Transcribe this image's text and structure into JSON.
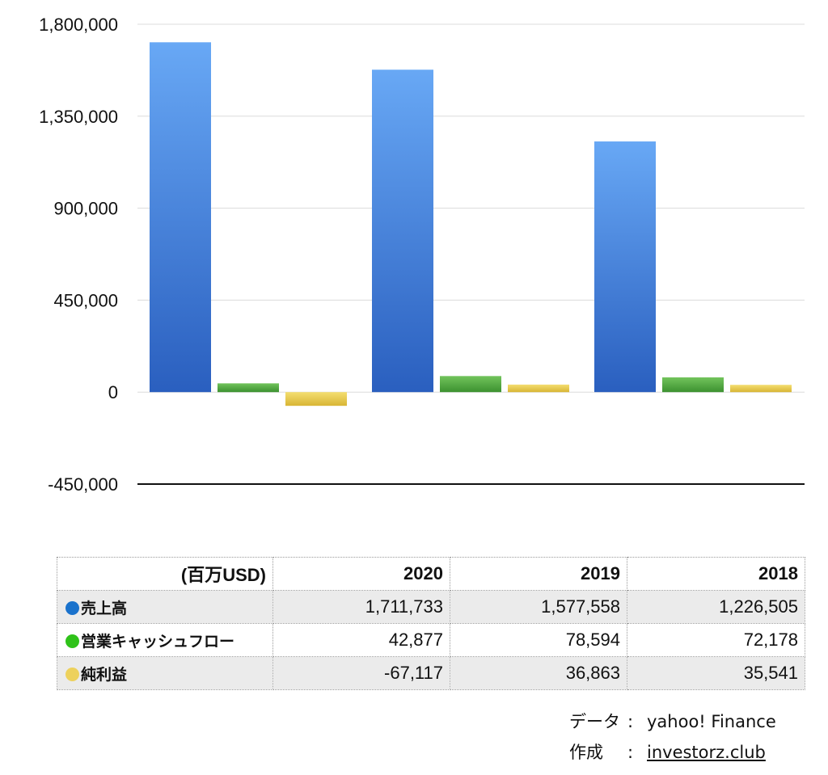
{
  "chart_data": {
    "type": "bar",
    "categories": [
      "2020",
      "2019",
      "2018"
    ],
    "series": [
      {
        "name": "売上高",
        "values": [
          1711733,
          1577558,
          1226505
        ],
        "color": "#3d7fe0",
        "color_top": "#68a8f5",
        "color_bottom": "#2a5fbf"
      },
      {
        "name": "営業キャッシュフロー",
        "values": [
          42877,
          78594,
          72178
        ],
        "color": "#4caf3e",
        "color_top": "#72c45c",
        "color_bottom": "#3c9130"
      },
      {
        "name": "純利益",
        "values": [
          -67117,
          36863,
          35541
        ],
        "color": "#e8c84a",
        "color_top": "#f4de70",
        "color_bottom": "#d8b534"
      }
    ],
    "y_ticks": [
      "1,800,000",
      "1,350,000",
      "900,000",
      "450,000",
      "0",
      "-450,000"
    ],
    "y_tick_values": [
      1800000,
      1350000,
      900000,
      450000,
      0,
      -450000
    ],
    "ylim": [
      -450000,
      1800000
    ],
    "grid": true,
    "legend": "none",
    "title": "",
    "xlabel": "",
    "ylabel": ""
  },
  "table": {
    "header": [
      "(百万USD)",
      "2020",
      "2019",
      "2018"
    ],
    "rows": [
      {
        "label": "売上高",
        "dot_color": "#1a72cc",
        "values": [
          "1,711,733",
          "1,577,558",
          "1,226,505"
        ]
      },
      {
        "label": "営業キャッシュフロー",
        "dot_color": "#2fc21a",
        "values": [
          "42,877",
          "78,594",
          "72,178"
        ]
      },
      {
        "label": "純利益",
        "dot_color": "#edd15c",
        "values": [
          "-67,117",
          "36,863",
          "35,541"
        ]
      }
    ]
  },
  "credits": {
    "data_label": "データ",
    "data_sep": ":",
    "data_value": "yahoo! Finance",
    "made_label": "作成",
    "made_sep": ":",
    "made_value": "investorz.club"
  }
}
